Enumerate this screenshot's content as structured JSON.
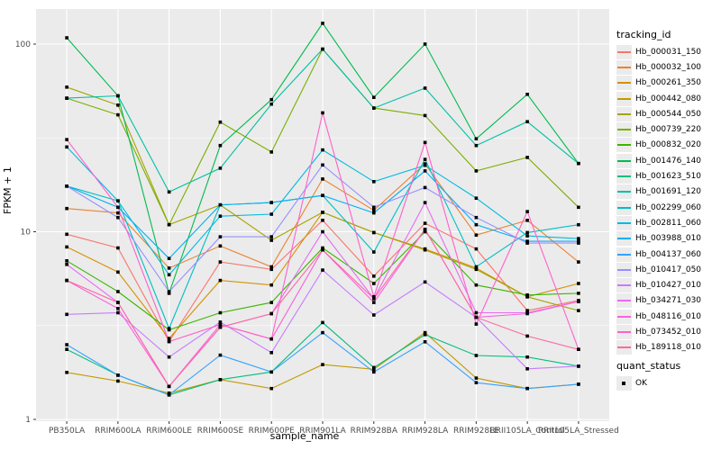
{
  "chart_data": {
    "type": "line",
    "title": "",
    "xlabel": "sample_name",
    "ylabel": "FPKM + 1",
    "y_scale": "log10",
    "y_ticks": [
      "100",
      "10",
      "1"
    ],
    "ylim": [
      1,
      155
    ],
    "grid": "on",
    "legend_position": "right",
    "legend_title": "tracking_id",
    "legend2_title": "quant_status",
    "legend2_entries": [
      "OK"
    ],
    "point_shape": "filled-square",
    "panel_bg": "#ebebeb",
    "gridline_color": "#ffffff",
    "x": [
      "PB350LA",
      "RRIM600LA",
      "RRIM600LE",
      "RRIM600SE",
      "RRIM600PE",
      "RRIM901LA",
      "RRIM928BA",
      "RRIM928LA",
      "RRIM928LE",
      "RRII105LA_Control",
      "RRII105LA_Stressed"
    ],
    "series": [
      {
        "name": "Hb_000031_150",
        "color": "#F8766D",
        "values": [
          9.7,
          8.2,
          2.6,
          6.9,
          6.3,
          11.5,
          5.8,
          11.1,
          8.1,
          3.8,
          4.3
        ]
      },
      {
        "name": "Hb_000032_100",
        "color": "#EA8331",
        "values": [
          13.3,
          12.6,
          6.4,
          8.4,
          6.5,
          19.1,
          13.0,
          23.0,
          9.6,
          11.5,
          6.9
        ]
      },
      {
        "name": "Hb_000261_350",
        "color": "#D89000",
        "values": [
          8.3,
          6.1,
          2.7,
          5.5,
          5.2,
          12.7,
          9.9,
          8.1,
          6.4,
          4.5,
          5.3
        ]
      },
      {
        "name": "Hb_000442_080",
        "color": "#C09B00",
        "values": [
          1.78,
          1.6,
          1.38,
          1.63,
          1.46,
          1.96,
          1.85,
          2.9,
          1.66,
          1.46,
          1.54
        ]
      },
      {
        "name": "Hb_000544_050",
        "color": "#A3A500",
        "values": [
          59.0,
          47.3,
          10.9,
          13.9,
          9.0,
          12.7,
          9.9,
          8.0,
          6.3,
          4.5,
          3.8
        ]
      },
      {
        "name": "Hb_000739_220",
        "color": "#7CAE00",
        "values": [
          51.5,
          42.0,
          10.9,
          38.4,
          26.6,
          94.0,
          45.6,
          41.6,
          21.1,
          24.9,
          13.5
        ]
      },
      {
        "name": "Hb_000832_020",
        "color": "#39B600",
        "values": [
          7.0,
          4.8,
          3.0,
          3.7,
          4.2,
          8.2,
          5.3,
          10.0,
          5.2,
          4.6,
          4.7
        ]
      },
      {
        "name": "Hb_001476_140",
        "color": "#00BB4E",
        "values": [
          108.0,
          53.0,
          4.7,
          28.8,
          50.6,
          129.0,
          52.0,
          100.0,
          31.3,
          54.0,
          23.1
        ]
      },
      {
        "name": "Hb_001623_510",
        "color": "#00BF7D",
        "values": [
          2.36,
          1.72,
          1.35,
          1.63,
          1.79,
          3.28,
          1.89,
          2.83,
          2.19,
          2.15,
          1.92
        ]
      },
      {
        "name": "Hb_001691_120",
        "color": "#00C1A3",
        "values": [
          51.5,
          53.0,
          16.3,
          21.8,
          47.9,
          94.0,
          45.6,
          58.3,
          28.8,
          38.6,
          23.1
        ]
      },
      {
        "name": "Hb_002299_060",
        "color": "#00BFC4",
        "values": [
          17.5,
          14.6,
          3.05,
          13.9,
          14.3,
          15.6,
          7.8,
          24.3,
          6.5,
          9.9,
          10.9
        ]
      },
      {
        "name": "Hb_002811_060",
        "color": "#00BAE0",
        "values": [
          28.3,
          14.6,
          5.9,
          12.1,
          12.4,
          27.3,
          18.5,
          22.6,
          15.1,
          9.5,
          9.2
        ]
      },
      {
        "name": "Hb_003988_010",
        "color": "#00B0F6",
        "values": [
          17.5,
          13.5,
          7.2,
          13.9,
          14.3,
          15.6,
          12.6,
          21.1,
          10.9,
          8.9,
          8.9
        ]
      },
      {
        "name": "Hb_004137_060",
        "color": "#35A2FF",
        "values": [
          2.5,
          1.72,
          1.35,
          2.2,
          1.79,
          2.9,
          1.79,
          2.59,
          1.57,
          1.46,
          1.54
        ]
      },
      {
        "name": "Hb_010417_050",
        "color": "#9590FF",
        "values": [
          17.5,
          11.9,
          4.8,
          9.4,
          9.4,
          22.7,
          13.5,
          17.2,
          11.9,
          8.7,
          8.7
        ]
      },
      {
        "name": "Hb_010427_010",
        "color": "#C77CFF",
        "values": [
          3.63,
          3.7,
          2.15,
          3.3,
          2.27,
          6.25,
          3.6,
          5.4,
          3.5,
          1.86,
          1.92
        ]
      },
      {
        "name": "Hb_034271_030",
        "color": "#E76BF3",
        "values": [
          6.7,
          4.2,
          1.5,
          3.1,
          3.66,
          10.0,
          4.4,
          14.3,
          3.7,
          3.7,
          4.25
        ]
      },
      {
        "name": "Hb_048116_010",
        "color": "#FA62DB",
        "values": [
          5.5,
          3.9,
          1.5,
          3.2,
          2.68,
          8.0,
          4.2,
          10.3,
          3.5,
          3.66,
          4.25
        ]
      },
      {
        "name": "Hb_073452_010",
        "color": "#FF61C9",
        "values": [
          31.0,
          13.5,
          2.6,
          3.2,
          2.68,
          43.0,
          4.5,
          29.9,
          3.22,
          12.8,
          2.36
        ]
      },
      {
        "name": "Hb_189118_010",
        "color": "#FF67A4",
        "values": [
          5.5,
          4.2,
          1.5,
          3.1,
          3.66,
          8.0,
          4.4,
          10.3,
          3.5,
          2.78,
          2.36
        ]
      }
    ]
  }
}
